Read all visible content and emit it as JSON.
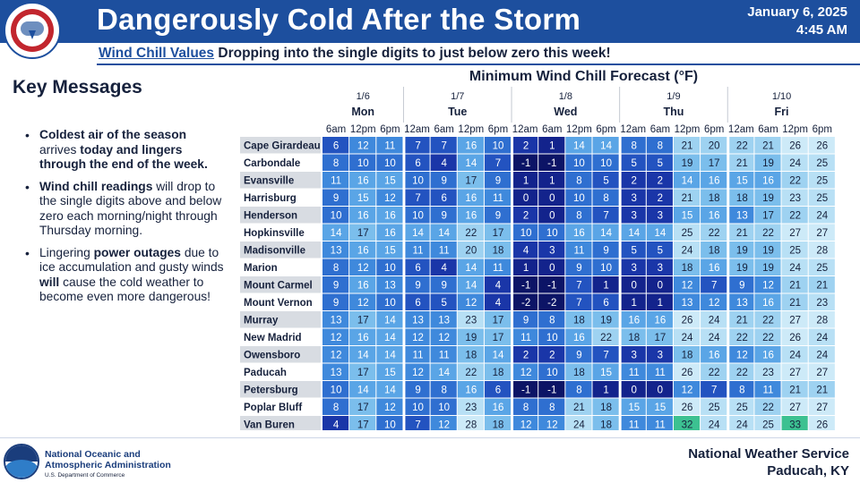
{
  "header": {
    "title": "Dangerously Cold After the Storm",
    "date": "January 6, 2025",
    "time": "4:45 AM",
    "bg_color": "#1d4f9e"
  },
  "subtitle": {
    "underlined": "Wind Chill Values",
    "rest": " Dropping into the single digits to just below zero this week!"
  },
  "key_messages": {
    "title": "Key Messages",
    "bullets": [
      [
        {
          "t": "Coldest air of the season",
          "b": true
        },
        {
          "t": " arrives ",
          "b": false
        },
        {
          "t": "today and lingers through the end of the week.",
          "b": true
        }
      ],
      [
        {
          "t": "Wind chill readings",
          "b": true
        },
        {
          "t": " will drop to the single digits above and below zero each morning/night through Thursday morning.",
          "b": false
        }
      ],
      [
        {
          "t": "Lingering ",
          "b": false
        },
        {
          "t": "power outages",
          "b": true
        },
        {
          "t": " due to ice accumulation and gusty winds ",
          "b": false
        },
        {
          "t": "will",
          "b": true
        },
        {
          "t": " cause the cold weather to become even more dangerous!",
          "b": false
        }
      ]
    ]
  },
  "chart_data": {
    "type": "table",
    "title": "Minimum Wind Chill Forecast (°F)",
    "days": [
      {
        "date": "1/6",
        "day": "Mon",
        "times": [
          "6am",
          "12pm",
          "6pm"
        ]
      },
      {
        "date": "1/7",
        "day": "Tue",
        "times": [
          "12am",
          "6am",
          "12pm",
          "6pm"
        ]
      },
      {
        "date": "1/8",
        "day": "Wed",
        "times": [
          "12am",
          "6am",
          "12pm",
          "6pm"
        ]
      },
      {
        "date": "1/9",
        "day": "Thu",
        "times": [
          "12am",
          "6am",
          "12pm",
          "6pm"
        ]
      },
      {
        "date": "1/10",
        "day": "Fri",
        "times": [
          "12am",
          "6am",
          "12pm",
          "6pm"
        ]
      }
    ],
    "locations": [
      "Cape Girardeau",
      "Carbondale",
      "Evansville",
      "Harrisburg",
      "Henderson",
      "Hopkinsville",
      "Madisonville",
      "Marion",
      "Mount Carmel",
      "Mount Vernon",
      "Murray",
      "New Madrid",
      "Owensboro",
      "Paducah",
      "Petersburg",
      "Poplar Bluff",
      "Van Buren"
    ],
    "values": [
      [
        6,
        12,
        11,
        7,
        7,
        16,
        10,
        2,
        1,
        14,
        14,
        8,
        8,
        21,
        20,
        22,
        21,
        26,
        26
      ],
      [
        8,
        10,
        10,
        6,
        4,
        14,
        7,
        -1,
        -1,
        10,
        10,
        5,
        5,
        19,
        17,
        21,
        19,
        24,
        25
      ],
      [
        11,
        16,
        15,
        10,
        9,
        17,
        9,
        1,
        1,
        8,
        5,
        2,
        2,
        14,
        16,
        15,
        16,
        22,
        25
      ],
      [
        9,
        15,
        12,
        7,
        6,
        16,
        11,
        0,
        0,
        10,
        8,
        3,
        2,
        21,
        18,
        18,
        19,
        23,
        25
      ],
      [
        10,
        16,
        16,
        10,
        9,
        16,
        9,
        2,
        0,
        8,
        7,
        3,
        3,
        15,
        16,
        13,
        17,
        22,
        24
      ],
      [
        14,
        17,
        16,
        14,
        14,
        22,
        17,
        10,
        10,
        16,
        14,
        14,
        14,
        25,
        22,
        21,
        22,
        27,
        27
      ],
      [
        13,
        16,
        15,
        11,
        11,
        20,
        18,
        4,
        3,
        11,
        9,
        5,
        5,
        24,
        18,
        19,
        19,
        25,
        28
      ],
      [
        8,
        12,
        10,
        6,
        4,
        14,
        11,
        1,
        0,
        9,
        10,
        3,
        3,
        18,
        16,
        19,
        19,
        24,
        25
      ],
      [
        9,
        16,
        13,
        9,
        9,
        14,
        4,
        -1,
        -1,
        7,
        1,
        0,
        0,
        12,
        7,
        9,
        12,
        21,
        21
      ],
      [
        9,
        12,
        10,
        6,
        5,
        12,
        4,
        -2,
        -2,
        7,
        6,
        1,
        1,
        13,
        12,
        13,
        16,
        21,
        23
      ],
      [
        13,
        17,
        14,
        13,
        13,
        23,
        17,
        9,
        8,
        18,
        19,
        16,
        16,
        26,
        24,
        21,
        22,
        27,
        28
      ],
      [
        12,
        16,
        14,
        12,
        12,
        19,
        17,
        11,
        10,
        16,
        22,
        18,
        17,
        24,
        24,
        22,
        22,
        26,
        24
      ],
      [
        12,
        14,
        14,
        11,
        11,
        18,
        14,
        2,
        2,
        9,
        7,
        3,
        3,
        18,
        16,
        12,
        16,
        24,
        24
      ],
      [
        13,
        17,
        15,
        12,
        14,
        22,
        18,
        12,
        10,
        18,
        15,
        11,
        11,
        26,
        22,
        22,
        23,
        27,
        27
      ],
      [
        10,
        14,
        14,
        9,
        8,
        16,
        6,
        -1,
        -1,
        8,
        1,
        0,
        0,
        12,
        7,
        8,
        11,
        21,
        21
      ],
      [
        8,
        17,
        12,
        10,
        10,
        23,
        16,
        8,
        8,
        21,
        18,
        15,
        15,
        26,
        25,
        25,
        22,
        27,
        27
      ],
      [
        4,
        17,
        10,
        7,
        12,
        28,
        18,
        12,
        12,
        24,
        18,
        11,
        11,
        32,
        24,
        24,
        25,
        33,
        26
      ]
    ],
    "color_scale": [
      {
        "max": -1,
        "color": "#0c1466"
      },
      {
        "max": 1,
        "color": "#13238c"
      },
      {
        "max": 4,
        "color": "#1a36a8"
      },
      {
        "max": 7,
        "color": "#2353c0"
      },
      {
        "max": 10,
        "color": "#2f6fd0"
      },
      {
        "max": 13,
        "color": "#3f89dc"
      },
      {
        "max": 16,
        "color": "#5aa5e6"
      },
      {
        "max": 19,
        "color": "#7bbeec"
      },
      {
        "max": 22,
        "color": "#9ed2f1"
      },
      {
        "max": 25,
        "color": "#b8e0f5"
      },
      {
        "max": 29,
        "color": "#cdeaf8"
      },
      {
        "max": 99,
        "color": "#3cc191"
      }
    ],
    "dark_text_threshold": 17
  },
  "footer": {
    "org_line1": "National Oceanic and",
    "org_line2": "Atmospheric Administration",
    "dept": "U.S. Department of Commerce",
    "office_line1": "National Weather Service",
    "office_line2": "Paducah, KY"
  }
}
